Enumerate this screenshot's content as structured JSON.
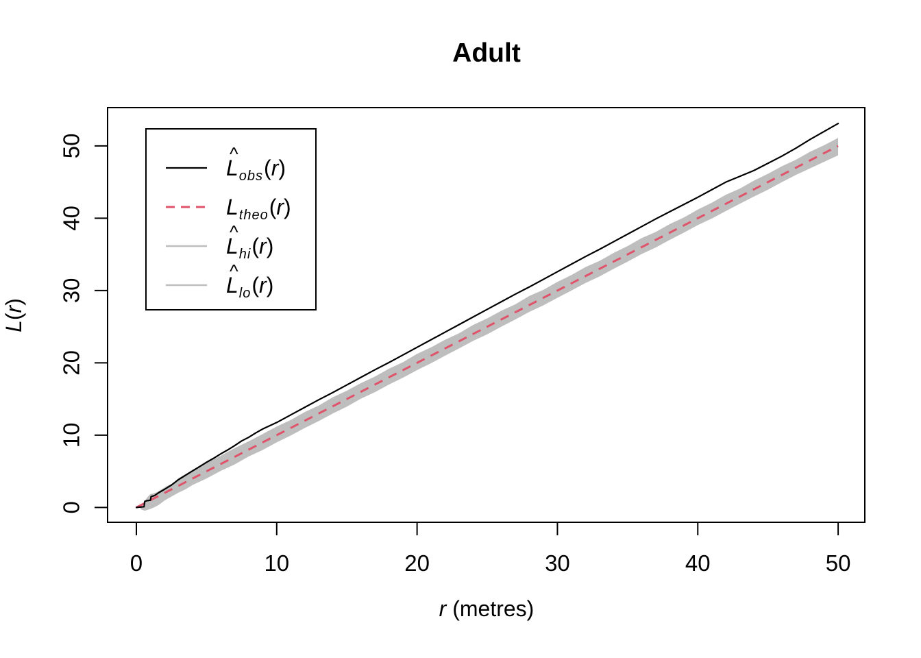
{
  "title": "Adult",
  "axes": {
    "xlabel_var": "r",
    "xlabel_rest": " (metres)",
    "ylabel_var": "L",
    "ylabel_open": "(",
    "ylabel_arg": "r",
    "ylabel_close": ")",
    "x_ticks": [
      "0",
      "10",
      "20",
      "30",
      "40",
      "50"
    ],
    "y_ticks": [
      "0",
      "10",
      "20",
      "30",
      "40",
      "50"
    ]
  },
  "legend": {
    "items": [
      {
        "hat": "^",
        "main": "L",
        "sub": "obs",
        "open": "(",
        "arg": "r",
        "close": ")",
        "line_color": "#000000",
        "line_dash": "",
        "line_width": 2.2
      },
      {
        "hat": "",
        "main": "L",
        "sub": "theo",
        "open": "(",
        "arg": "r",
        "close": ")",
        "line_color": "#DF536B",
        "line_dash": "13 9",
        "line_width": 3
      },
      {
        "hat": "^",
        "main": "L",
        "sub": "hi",
        "open": "(",
        "arg": "r",
        "close": ")",
        "line_color": "#BEBEBE",
        "line_dash": "",
        "line_width": 2.6
      },
      {
        "hat": "^",
        "main": "L",
        "sub": "lo",
        "open": "(",
        "arg": "r",
        "close": ")",
        "line_color": "#BEBEBE",
        "line_dash": "",
        "line_width": 2.6
      }
    ]
  },
  "colors": {
    "obs_line": "#000000",
    "theo_line": "#DF536B",
    "envelope_band": "#BEBEBE",
    "axis": "#000000",
    "background": "#FFFFFF"
  },
  "chart_data": {
    "type": "line",
    "title": "Adult",
    "xlabel": "r (metres)",
    "ylabel": "L(r)",
    "xlim": [
      -2.05,
      51.9
    ],
    "ylim": [
      -2.05,
      55.3
    ],
    "x_ticks": [
      0,
      10,
      20,
      30,
      40,
      50
    ],
    "y_ticks": [
      0,
      10,
      20,
      30,
      40,
      50
    ],
    "grid": false,
    "legend_position": "top-left",
    "band_fill": "#BEBEBE",
    "series": [
      {
        "name": "L_obs(r)",
        "style": "solid",
        "color": "#000000",
        "x": [
          0,
          0.55,
          0.6,
          0.8,
          1.0,
          1.05,
          1.3,
          1.6,
          2,
          2.5,
          3,
          3.5,
          4,
          4.5,
          5,
          5.5,
          6,
          6.5,
          7,
          7.5,
          8,
          8.5,
          9,
          9.5,
          10,
          11,
          12,
          13,
          14,
          15,
          16,
          17,
          18,
          19,
          20,
          21,
          22,
          23,
          24,
          25,
          26,
          27,
          28,
          29,
          30,
          31,
          32,
          33,
          34,
          35,
          36,
          37,
          38,
          39,
          40,
          41,
          42,
          43,
          44,
          45,
          46,
          47,
          48,
          49,
          50
        ],
        "y": [
          0,
          0.1,
          0.85,
          0.95,
          1.0,
          1.5,
          1.65,
          2.05,
          2.5,
          3.1,
          3.85,
          4.45,
          5.05,
          5.65,
          6.25,
          6.8,
          7.4,
          7.95,
          8.55,
          9.2,
          9.7,
          10.3,
          10.85,
          11.3,
          11.75,
          12.8,
          13.85,
          14.9,
          15.9,
          16.95,
          18.0,
          19.05,
          20.05,
          21.1,
          22.15,
          23.2,
          24.25,
          25.3,
          26.35,
          27.4,
          28.45,
          29.5,
          30.5,
          31.55,
          32.6,
          33.65,
          34.7,
          35.7,
          36.75,
          37.8,
          38.85,
          39.9,
          40.9,
          41.9,
          42.9,
          43.95,
          45.0,
          45.8,
          46.6,
          47.6,
          48.6,
          49.7,
          50.9,
          52.0,
          53.1
        ]
      },
      {
        "name": "L_theo(r)",
        "style": "dashed",
        "color": "#DF536B",
        "x": [
          0,
          50
        ],
        "y": [
          0,
          50
        ]
      },
      {
        "name": "L_hi(r)",
        "style": "band-upper",
        "color": "#BEBEBE",
        "x": [
          0.3,
          0.6,
          0.8,
          1,
          1.4,
          1.8,
          2.2,
          2.6,
          3,
          3.4,
          4,
          4.5,
          5,
          6,
          7,
          8,
          9,
          10,
          11,
          12,
          13,
          14,
          15,
          16,
          17,
          18,
          19,
          20,
          21,
          22,
          23,
          24,
          25,
          26,
          27,
          28,
          29,
          30,
          31,
          32,
          33,
          34,
          35,
          36,
          37,
          38,
          39,
          40,
          41,
          42,
          43,
          44,
          45,
          46,
          47,
          48,
          49,
          50
        ],
        "y": [
          0.2,
          0.9,
          1.45,
          1.85,
          2.05,
          2.5,
          3.0,
          3.3,
          4.05,
          4.5,
          5.2,
          5.7,
          6.2,
          7.15,
          8.2,
          9.15,
          10.15,
          11.2,
          12.1,
          13.2,
          14.1,
          15.25,
          16.15,
          17.2,
          18.1,
          19.2,
          20.1,
          21.25,
          22.15,
          23.2,
          24.1,
          25.25,
          26.15,
          27.2,
          28.1,
          29.25,
          30.1,
          31.2,
          32.15,
          33.25,
          34.1,
          35.2,
          36.15,
          37.25,
          38.1,
          39.2,
          40.1,
          41.2,
          42.15,
          43.25,
          44.1,
          45.2,
          46.15,
          47.2,
          48.1,
          49.2,
          50.1,
          51.1
        ]
      },
      {
        "name": "L_lo(r)",
        "style": "band-lower",
        "color": "#BEBEBE",
        "x": [
          0.3,
          0.6,
          1,
          1.3,
          1.6,
          2,
          2.4,
          3,
          3.5,
          4,
          5,
          6,
          7,
          8,
          9,
          10,
          11,
          12,
          13,
          14,
          15,
          16,
          17,
          18,
          19,
          20,
          21,
          22,
          23,
          24,
          25,
          26,
          27,
          28,
          29,
          30,
          31,
          32,
          33,
          34,
          35,
          36,
          37,
          38,
          39,
          40,
          41,
          42,
          43,
          44,
          45,
          46,
          47,
          48,
          49,
          50
        ],
        "y": [
          -0.25,
          -0.45,
          -0.2,
          0.05,
          0.35,
          0.95,
          1.4,
          2.05,
          2.5,
          3.1,
          4.0,
          5.05,
          5.95,
          7.05,
          7.95,
          9.0,
          9.95,
          11.0,
          11.95,
          13.0,
          13.95,
          15.05,
          15.95,
          17.0,
          17.95,
          19.0,
          19.95,
          21.0,
          22.0,
          23.05,
          23.95,
          25.0,
          26.0,
          27.05,
          27.95,
          29.0,
          30.0,
          31.05,
          31.95,
          33.0,
          34.0,
          35.05,
          35.95,
          37.0,
          38.0,
          39.05,
          39.95,
          41.0,
          42.0,
          43.0,
          43.95,
          45.0,
          46.0,
          46.9,
          47.8,
          48.7
        ]
      }
    ]
  }
}
